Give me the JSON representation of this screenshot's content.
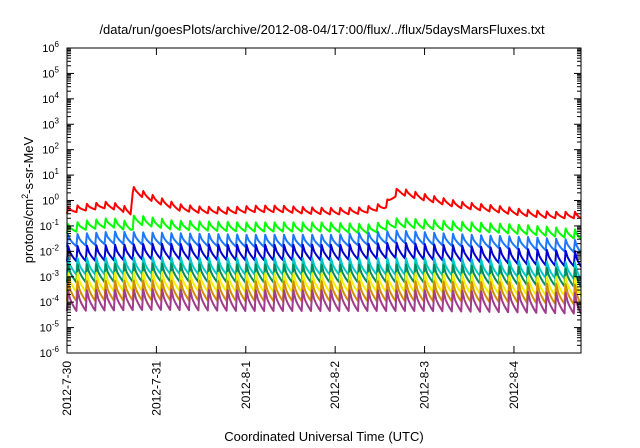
{
  "chart_data": {
    "type": "line",
    "title": "/data/run/goesPlots/archive/2012-08-04/17:00/flux/../flux/5daysMarsFluxes.txt",
    "xlabel": "Coordinated Universal Time (UTC)",
    "ylabel": {
      "prefix": "protons/cm",
      "sup": "2",
      "suffix": "-s-sr-MeV"
    },
    "yscale": "log",
    "ylim_exponent": [
      -6,
      6
    ],
    "y_ticks": [
      {
        "base": "10",
        "exp": "6",
        "value": 1000000.0
      },
      {
        "base": "10",
        "exp": "5",
        "value": 100000.0
      },
      {
        "base": "10",
        "exp": "4",
        "value": 10000.0
      },
      {
        "base": "10",
        "exp": "3",
        "value": 1000.0
      },
      {
        "base": "10",
        "exp": "2",
        "value": 100.0
      },
      {
        "base": "10",
        "exp": "1",
        "value": 10.0
      },
      {
        "base": "10",
        "exp": "0",
        "value": 1
      },
      {
        "base": "10",
        "exp": "-1",
        "value": 0.1
      },
      {
        "base": "10",
        "exp": "-2",
        "value": 0.01
      },
      {
        "base": "10",
        "exp": "-3",
        "value": 0.001
      },
      {
        "base": "10",
        "exp": "-4",
        "value": 0.0001
      },
      {
        "base": "10",
        "exp": "-5",
        "value": 1e-05
      },
      {
        "base": "10",
        "exp": "-6",
        "value": 1e-06
      }
    ],
    "x_ticks": [
      "2012-7-30",
      "2012-7-31",
      "2012-8-1",
      "2012-8-2",
      "2012-8-3",
      "2012-8-4"
    ],
    "xlim_days": [
      0,
      5.75
    ],
    "grid": false,
    "legend": "none",
    "series": [
      {
        "color": "#ff0000",
        "points": [
          [
            0,
            0.3
          ],
          [
            0.2,
            0.4
          ],
          [
            0.45,
            0.5
          ],
          [
            0.6,
            0.4
          ],
          [
            0.72,
            0.25
          ],
          [
            0.73,
            2.0
          ],
          [
            1.0,
            0.8
          ],
          [
            1.25,
            0.4
          ],
          [
            1.5,
            0.32
          ],
          [
            1.8,
            0.3
          ],
          [
            2.1,
            0.35
          ],
          [
            2.4,
            0.35
          ],
          [
            2.7,
            0.3
          ],
          [
            3.0,
            0.28
          ],
          [
            3.3,
            0.3
          ],
          [
            3.55,
            0.45
          ],
          [
            3.7,
            1.8
          ],
          [
            4.0,
            1.0
          ],
          [
            4.4,
            0.5
          ],
          [
            4.8,
            0.35
          ],
          [
            5.1,
            0.25
          ],
          [
            5.4,
            0.2
          ],
          [
            5.75,
            0.2
          ]
        ],
        "sawtooth": {
          "period": 0.105,
          "rise_factor": 1.8
        }
      },
      {
        "color": "#00ff00",
        "points": [
          [
            0,
            0.05
          ],
          [
            0.2,
            0.07
          ],
          [
            0.5,
            0.09
          ],
          [
            0.73,
            0.06
          ],
          [
            0.75,
            0.12
          ],
          [
            1.2,
            0.07
          ],
          [
            2.0,
            0.06
          ],
          [
            2.9,
            0.06
          ],
          [
            3.4,
            0.05
          ],
          [
            3.7,
            0.09
          ],
          [
            4.2,
            0.07
          ],
          [
            5.0,
            0.05
          ],
          [
            5.4,
            0.04
          ],
          [
            5.75,
            0.03
          ]
        ],
        "sawtooth": {
          "period": 0.105,
          "rise_factor": 2.3
        }
      },
      {
        "color": "#1e78ff",
        "points": [
          [
            0,
            0.015
          ],
          [
            0.5,
            0.02
          ],
          [
            1.0,
            0.018
          ],
          [
            2.0,
            0.015
          ],
          [
            3.0,
            0.015
          ],
          [
            3.7,
            0.022
          ],
          [
            4.5,
            0.015
          ],
          [
            5.2,
            0.012
          ],
          [
            5.75,
            0.009
          ]
        ],
        "sawtooth": {
          "period": 0.105,
          "rise_factor": 3.0
        }
      },
      {
        "color": "#0000d0",
        "points": [
          [
            0,
            0.004
          ],
          [
            1.0,
            0.005
          ],
          [
            2.0,
            0.0045
          ],
          [
            3.0,
            0.0045
          ],
          [
            3.7,
            0.0055
          ],
          [
            4.5,
            0.004
          ],
          [
            5.2,
            0.003
          ],
          [
            5.75,
            0.0025
          ]
        ],
        "sawtooth": {
          "period": 0.105,
          "rise_factor": 4.0
        }
      },
      {
        "color": "#00c8c8",
        "points": [
          [
            0,
            0.0012
          ],
          [
            1.0,
            0.0013
          ],
          [
            2.0,
            0.0012
          ],
          [
            3.0,
            0.0012
          ],
          [
            4.0,
            0.0012
          ],
          [
            5.0,
            0.001
          ],
          [
            5.75,
            0.0008
          ]
        ],
        "sawtooth": {
          "period": 0.105,
          "rise_factor": 4.5
        }
      },
      {
        "color": "#008c5a",
        "points": [
          [
            0,
            0.0006
          ],
          [
            1.0,
            0.00065
          ],
          [
            2.0,
            0.0006
          ],
          [
            3.0,
            0.0006
          ],
          [
            4.0,
            0.0006
          ],
          [
            5.0,
            0.0005
          ],
          [
            5.75,
            0.0004
          ]
        ],
        "sawtooth": {
          "period": 0.105,
          "rise_factor": 5.0
        }
      },
      {
        "color": "#f0f000",
        "points": [
          [
            0,
            0.00025
          ],
          [
            1.0,
            0.00028
          ],
          [
            2.0,
            0.00025
          ],
          [
            3.0,
            0.00025
          ],
          [
            4.0,
            0.00025
          ],
          [
            5.0,
            0.0002
          ],
          [
            5.75,
            0.00017
          ]
        ],
        "sawtooth": {
          "period": 0.105,
          "rise_factor": 5.5
        }
      },
      {
        "color": "#d28c00",
        "points": [
          [
            0,
            0.00011
          ],
          [
            1.0,
            0.00012
          ],
          [
            2.0,
            0.00011
          ],
          [
            3.0,
            0.00011
          ],
          [
            4.0,
            0.00011
          ],
          [
            5.0,
            0.0001
          ],
          [
            5.75,
            8e-05
          ]
        ],
        "sawtooth": {
          "period": 0.105,
          "rise_factor": 6.0
        }
      },
      {
        "color": "#a03c8c",
        "points": [
          [
            0,
            4.5e-05
          ],
          [
            1.0,
            5e-05
          ],
          [
            2.0,
            4.5e-05
          ],
          [
            3.0,
            4.5e-05
          ],
          [
            4.0,
            4.5e-05
          ],
          [
            5.0,
            4e-05
          ],
          [
            5.75,
            3.5e-05
          ]
        ],
        "sawtooth": {
          "period": 0.105,
          "rise_factor": 6.5
        }
      }
    ]
  }
}
